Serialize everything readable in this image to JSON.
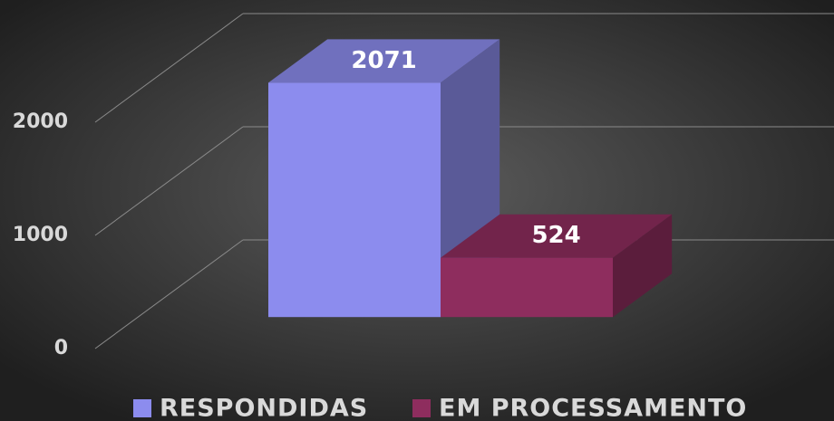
{
  "chart_data": {
    "type": "bar3d",
    "series": [
      {
        "name": "RESPONDIDAS",
        "color": "#8c8cee",
        "values": [
          2071
        ]
      },
      {
        "name": "EM PROCESSAMENTO",
        "color": "#8e2d5e",
        "values": [
          524
        ]
      }
    ],
    "ylim": [
      0,
      2000
    ],
    "yticks": [
      0,
      1000,
      2000
    ],
    "grid": true,
    "legend": "bottom"
  }
}
